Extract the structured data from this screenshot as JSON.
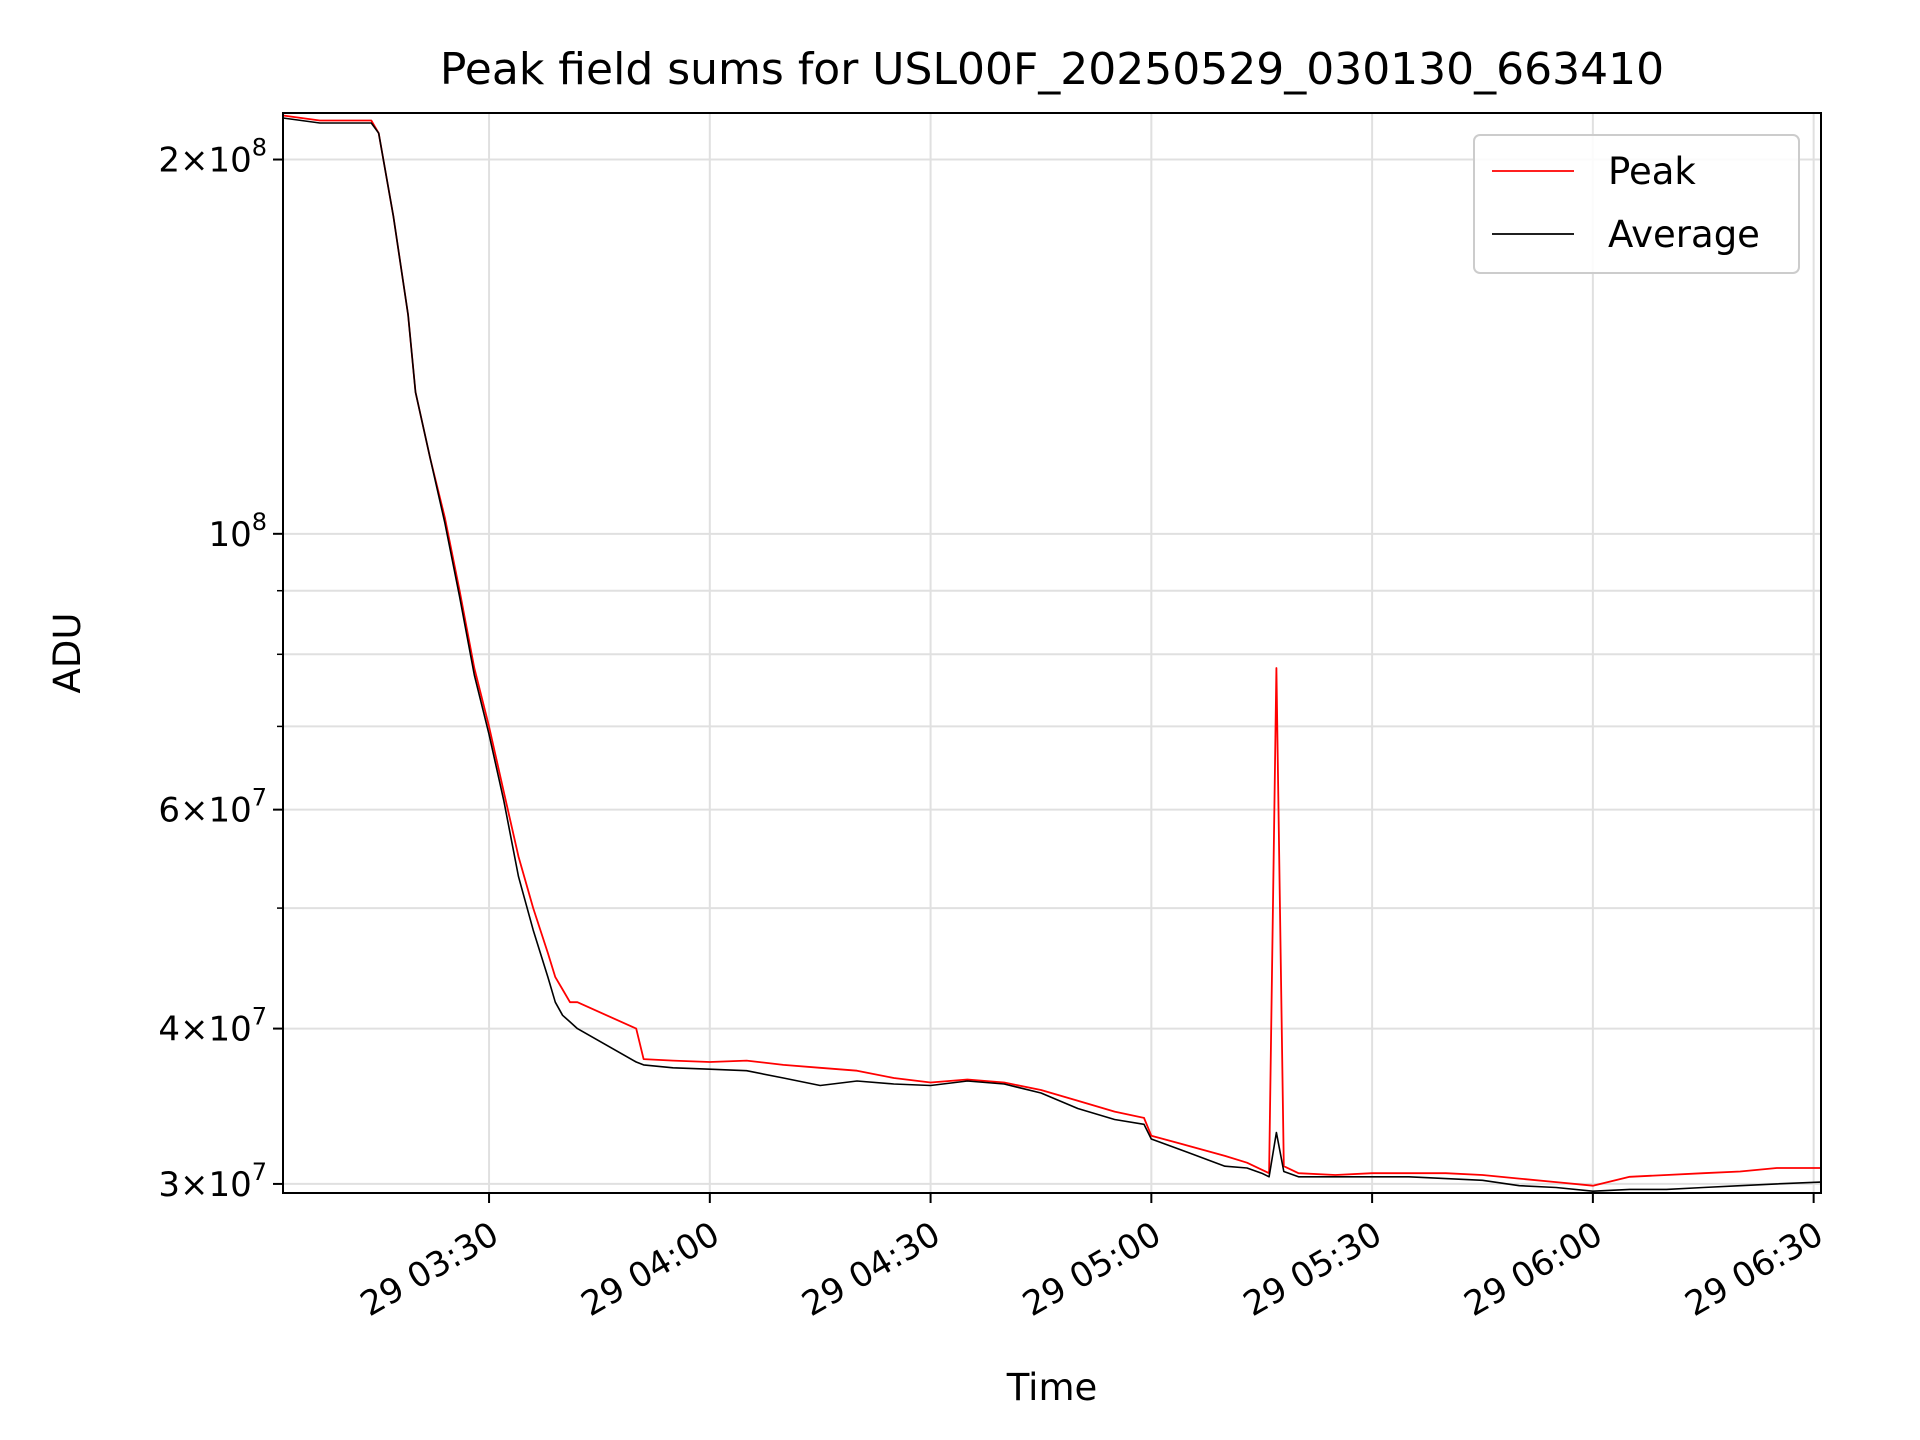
{
  "chart_data": {
    "type": "line",
    "title": "Peak field sums for USL00F_20250529_030130_663410",
    "xlabel": "Time",
    "ylabel": "ADU",
    "yscale": "log",
    "ylim": [
      29500000,
      218000000
    ],
    "xlim": [
      "2025-05-29 03:02",
      "2025-05-29 06:31"
    ],
    "grid": true,
    "legend_position": "top-right",
    "x_ticks": [
      {
        "value": "2025-05-29 03:30",
        "label": "29 03:30"
      },
      {
        "value": "2025-05-29 04:00",
        "label": "29 04:00"
      },
      {
        "value": "2025-05-29 04:30",
        "label": "29 04:30"
      },
      {
        "value": "2025-05-29 05:00",
        "label": "29 05:00"
      },
      {
        "value": "2025-05-29 05:30",
        "label": "29 05:30"
      },
      {
        "value": "2025-05-29 06:00",
        "label": "29 06:00"
      },
      {
        "value": "2025-05-29 06:30",
        "label": "29 06:30"
      }
    ],
    "y_ticks": [
      {
        "value": 30000000,
        "mantissa": "3",
        "exponent": "7"
      },
      {
        "value": 40000000,
        "mantissa": "4",
        "exponent": "7"
      },
      {
        "value": 60000000,
        "mantissa": "6",
        "exponent": "7"
      },
      {
        "value": 100000000,
        "mantissa": "",
        "exponent": "8"
      },
      {
        "value": 200000000,
        "mantissa": "2",
        "exponent": "8"
      }
    ],
    "y_minor_ticks": [
      50000000,
      70000000,
      80000000,
      90000000
    ],
    "series": [
      {
        "name": "Peak",
        "color": "#ff0000",
        "x": [
          "2025-05-29 03:02",
          "2025-05-29 03:07",
          "2025-05-29 03:08",
          "2025-05-29 03:14",
          "2025-05-29 03:15",
          "2025-05-29 03:17",
          "2025-05-29 03:19",
          "2025-05-29 03:20",
          "2025-05-29 03:22",
          "2025-05-29 03:24",
          "2025-05-29 03:26",
          "2025-05-29 03:28",
          "2025-05-29 03:30",
          "2025-05-29 03:32",
          "2025-05-29 03:34",
          "2025-05-29 03:36",
          "2025-05-29 03:38",
          "2025-05-29 03:39",
          "2025-05-29 03:40",
          "2025-05-29 03:41",
          "2025-05-29 03:42",
          "2025-05-29 03:50",
          "2025-05-29 03:51",
          "2025-05-29 03:55",
          "2025-05-29 04:00",
          "2025-05-29 04:05",
          "2025-05-29 04:10",
          "2025-05-29 04:15",
          "2025-05-29 04:20",
          "2025-05-29 04:25",
          "2025-05-29 04:30",
          "2025-05-29 04:35",
          "2025-05-29 04:40",
          "2025-05-29 04:45",
          "2025-05-29 04:50",
          "2025-05-29 04:55",
          "2025-05-29 04:59",
          "2025-05-29 05:00",
          "2025-05-29 05:05",
          "2025-05-29 05:10",
          "2025-05-29 05:13",
          "2025-05-29 05:15",
          "2025-05-29 05:16",
          "2025-05-29 05:17",
          "2025-05-29 05:18",
          "2025-05-29 05:20",
          "2025-05-29 05:25",
          "2025-05-29 05:30",
          "2025-05-29 05:35",
          "2025-05-29 05:40",
          "2025-05-29 05:45",
          "2025-05-29 05:50",
          "2025-05-29 05:55",
          "2025-05-29 06:00",
          "2025-05-29 06:05",
          "2025-05-29 06:10",
          "2025-05-29 06:15",
          "2025-05-29 06:20",
          "2025-05-29 06:25",
          "2025-05-29 06:31"
        ],
        "y": [
          217000000,
          215000000,
          215000000,
          215000000,
          210000000,
          180000000,
          150000000,
          130000000,
          115000000,
          103000000,
          90000000,
          78000000,
          70000000,
          62000000,
          55000000,
          50000000,
          46000000,
          44000000,
          43000000,
          42000000,
          42000000,
          40000000,
          37800000,
          37700000,
          37600000,
          37700000,
          37400000,
          37200000,
          37000000,
          36500000,
          36200000,
          36400000,
          36200000,
          35700000,
          35000000,
          34300000,
          33900000,
          32800000,
          32200000,
          31600000,
          31200000,
          30800000,
          30600000,
          78000000,
          31000000,
          30600000,
          30500000,
          30600000,
          30600000,
          30600000,
          30500000,
          30300000,
          30100000,
          29900000,
          30400000,
          30500000,
          30600000,
          30700000,
          30900000,
          30900000
        ]
      },
      {
        "name": "Average",
        "color": "#000000",
        "x": [
          "2025-05-29 03:02",
          "2025-05-29 03:07",
          "2025-05-29 03:08",
          "2025-05-29 03:14",
          "2025-05-29 03:15",
          "2025-05-29 03:17",
          "2025-05-29 03:19",
          "2025-05-29 03:20",
          "2025-05-29 03:22",
          "2025-05-29 03:24",
          "2025-05-29 03:26",
          "2025-05-29 03:28",
          "2025-05-29 03:30",
          "2025-05-29 03:32",
          "2025-05-29 03:34",
          "2025-05-29 03:36",
          "2025-05-29 03:38",
          "2025-05-29 03:39",
          "2025-05-29 03:40",
          "2025-05-29 03:41",
          "2025-05-29 03:42",
          "2025-05-29 03:50",
          "2025-05-29 03:51",
          "2025-05-29 03:55",
          "2025-05-29 04:00",
          "2025-05-29 04:05",
          "2025-05-29 04:10",
          "2025-05-29 04:15",
          "2025-05-29 04:20",
          "2025-05-29 04:25",
          "2025-05-29 04:30",
          "2025-05-29 04:35",
          "2025-05-29 04:40",
          "2025-05-29 04:45",
          "2025-05-29 04:50",
          "2025-05-29 04:55",
          "2025-05-29 04:59",
          "2025-05-29 05:00",
          "2025-05-29 05:05",
          "2025-05-29 05:10",
          "2025-05-29 05:13",
          "2025-05-29 05:15",
          "2025-05-29 05:16",
          "2025-05-29 05:17",
          "2025-05-29 05:18",
          "2025-05-29 05:20",
          "2025-05-29 05:25",
          "2025-05-29 05:30",
          "2025-05-29 05:35",
          "2025-05-29 05:40",
          "2025-05-29 05:45",
          "2025-05-29 05:50",
          "2025-05-29 05:55",
          "2025-05-29 06:00",
          "2025-05-29 06:05",
          "2025-05-29 06:10",
          "2025-05-29 06:15",
          "2025-05-29 06:20",
          "2025-05-29 06:25",
          "2025-05-29 06:31"
        ],
        "y": [
          216000000,
          214000000,
          214000000,
          214000000,
          210000000,
          180000000,
          150000000,
          130000000,
          115000000,
          102000000,
          89000000,
          77000000,
          69000000,
          61000000,
          53000000,
          48000000,
          44000000,
          42000000,
          41000000,
          40500000,
          40000000,
          37600000,
          37400000,
          37200000,
          37100000,
          37000000,
          36500000,
          36000000,
          36300000,
          36100000,
          36000000,
          36300000,
          36100000,
          35500000,
          34500000,
          33800000,
          33500000,
          32600000,
          31800000,
          31000000,
          30900000,
          30600000,
          30400000,
          33000000,
          30700000,
          30400000,
          30400000,
          30400000,
          30400000,
          30300000,
          30200000,
          29900000,
          29800000,
          29600000,
          29700000,
          29700000,
          29800000,
          29900000,
          30000000,
          30100000
        ]
      }
    ]
  }
}
